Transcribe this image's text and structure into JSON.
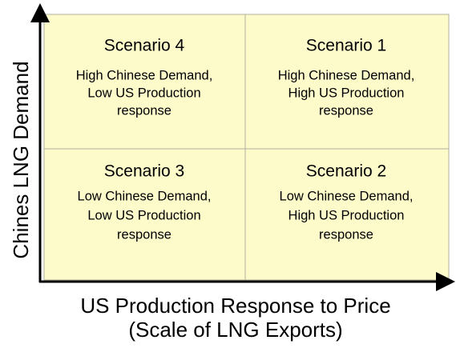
{
  "y_axis_label": "Chines LNG Demand",
  "x_axis_label": [
    "US Production Response to Price",
    "(Scale of LNG Exports)"
  ],
  "quadrants": [
    {
      "title": "Scenario 4",
      "lines": [
        "High Chinese Demand,",
        "Low US Production",
        "response"
      ]
    },
    {
      "title": "Scenario 1",
      "lines": [
        "High Chinese Demand,",
        "High US Production",
        "response"
      ]
    },
    {
      "title": "Scenario 3",
      "lines": [
        "Low Chinese Demand,",
        "Low US Production",
        "response"
      ]
    },
    {
      "title": "Scenario 2",
      "lines": [
        "Low Chinese Demand,",
        "High US Production",
        "response"
      ]
    }
  ]
}
